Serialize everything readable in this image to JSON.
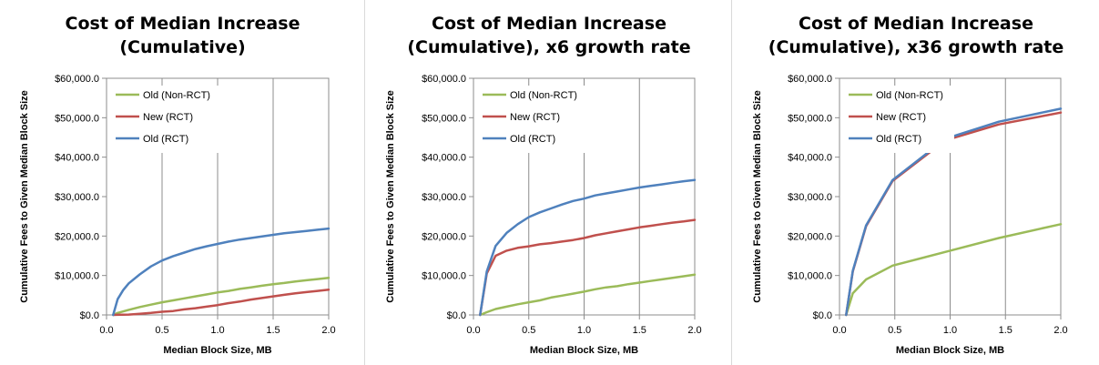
{
  "chart_data": [
    {
      "type": "line",
      "title_lines": [
        "Cost of Median Increase",
        "(Cumulative)"
      ],
      "xlabel": "Median Block Size, MB",
      "ylabel": "Cumulative Fees to Given Median Block Size",
      "xlim": [
        0,
        2
      ],
      "ylim": [
        0,
        60000
      ],
      "x_ticks": [
        0,
        0.5,
        1,
        1.5,
        2
      ],
      "x_tick_labels": [
        "0.0",
        "0.5",
        "1.0",
        "1.5",
        "2.0"
      ],
      "y_ticks": [
        0,
        10000,
        20000,
        30000,
        40000,
        50000,
        60000
      ],
      "y_tick_labels": [
        "$0.0",
        "$10,000.0",
        "$20,000.0",
        "$30,000.0",
        "$40,000.0",
        "$50,000.0",
        "$60,000.0"
      ],
      "grid": "vertical",
      "legend": "top-left",
      "series": [
        {
          "name": "Old (Non-RCT)",
          "color": "#9BBB59",
          "points": [
            [
              0.06,
              0
            ],
            [
              0.1,
              500
            ],
            [
              0.2,
              1300
            ],
            [
              0.3,
              2000
            ],
            [
              0.4,
              2600
            ],
            [
              0.5,
              3200
            ],
            [
              0.6,
              3700
            ],
            [
              0.7,
              4200
            ],
            [
              0.8,
              4700
            ],
            [
              0.9,
              5200
            ],
            [
              1.0,
              5700
            ],
            [
              1.1,
              6100
            ],
            [
              1.2,
              6600
            ],
            [
              1.3,
              7000
            ],
            [
              1.4,
              7400
            ],
            [
              1.5,
              7800
            ],
            [
              1.6,
              8100
            ],
            [
              1.7,
              8500
            ],
            [
              1.8,
              8800
            ],
            [
              1.9,
              9100
            ],
            [
              2.0,
              9400
            ]
          ]
        },
        {
          "name": "New (RCT)",
          "color": "#C0504D",
          "points": [
            [
              0.06,
              0
            ],
            [
              0.2,
              100
            ],
            [
              0.3,
              300
            ],
            [
              0.4,
              500
            ],
            [
              0.5,
              800
            ],
            [
              0.6,
              1000
            ],
            [
              0.7,
              1400
            ],
            [
              0.8,
              1700
            ],
            [
              0.9,
              2100
            ],
            [
              1.0,
              2500
            ],
            [
              1.1,
              3000
            ],
            [
              1.2,
              3400
            ],
            [
              1.3,
              3900
            ],
            [
              1.4,
              4300
            ],
            [
              1.5,
              4700
            ],
            [
              1.6,
              5100
            ],
            [
              1.7,
              5500
            ],
            [
              1.8,
              5800
            ],
            [
              1.9,
              6100
            ],
            [
              2.0,
              6400
            ]
          ]
        },
        {
          "name": "Old (RCT)",
          "color": "#4F81BD",
          "points": [
            [
              0.06,
              0
            ],
            [
              0.1,
              4000
            ],
            [
              0.15,
              6300
            ],
            [
              0.2,
              8000
            ],
            [
              0.3,
              10300
            ],
            [
              0.4,
              12300
            ],
            [
              0.5,
              13800
            ],
            [
              0.6,
              14900
            ],
            [
              0.7,
              15800
            ],
            [
              0.8,
              16700
            ],
            [
              0.9,
              17400
            ],
            [
              1.0,
              18000
            ],
            [
              1.1,
              18600
            ],
            [
              1.2,
              19100
            ],
            [
              1.3,
              19500
            ],
            [
              1.4,
              19900
            ],
            [
              1.5,
              20300
            ],
            [
              1.6,
              20700
            ],
            [
              1.7,
              21000
            ],
            [
              1.8,
              21300
            ],
            [
              1.9,
              21600
            ],
            [
              2.0,
              21900
            ]
          ]
        }
      ]
    },
    {
      "type": "line",
      "title_lines": [
        "Cost of Median Increase",
        "(Cumulative), x6 growth rate"
      ],
      "xlabel": "Median Block Size, MB",
      "ylabel": "Cumulative Fees to Given Median Block Size",
      "xlim": [
        0,
        2
      ],
      "ylim": [
        0,
        60000
      ],
      "x_ticks": [
        0,
        0.5,
        1,
        1.5,
        2
      ],
      "x_tick_labels": [
        "0.0",
        "0.5",
        "1.0",
        "1.5",
        "2.0"
      ],
      "y_ticks": [
        0,
        10000,
        20000,
        30000,
        40000,
        50000,
        60000
      ],
      "y_tick_labels": [
        "$0.0",
        "$10,000.0",
        "$20,000.0",
        "$30,000.0",
        "$40,000.0",
        "$50,000.0",
        "$60,000.0"
      ],
      "grid": "vertical",
      "legend": "top-left",
      "series": [
        {
          "name": "Old (Non-RCT)",
          "color": "#9BBB59",
          "points": [
            [
              0.06,
              0
            ],
            [
              0.12,
              700
            ],
            [
              0.2,
              1500
            ],
            [
              0.3,
              2100
            ],
            [
              0.4,
              2700
            ],
            [
              0.5,
              3200
            ],
            [
              0.6,
              3700
            ],
            [
              0.7,
              4400
            ],
            [
              0.8,
              4900
            ],
            [
              0.9,
              5400
            ],
            [
              1.0,
              5900
            ],
            [
              1.1,
              6500
            ],
            [
              1.2,
              7000
            ],
            [
              1.3,
              7300
            ],
            [
              1.4,
              7800
            ],
            [
              1.5,
              8200
            ],
            [
              1.6,
              8600
            ],
            [
              1.7,
              9000
            ],
            [
              1.8,
              9400
            ],
            [
              1.9,
              9800
            ],
            [
              2.0,
              10200
            ]
          ]
        },
        {
          "name": "New (RCT)",
          "color": "#C0504D",
          "points": [
            [
              0.06,
              0
            ],
            [
              0.12,
              10500
            ],
            [
              0.2,
              15000
            ],
            [
              0.3,
              16300
            ],
            [
              0.4,
              17000
            ],
            [
              0.5,
              17400
            ],
            [
              0.6,
              17900
            ],
            [
              0.7,
              18200
            ],
            [
              0.8,
              18600
            ],
            [
              0.9,
              19000
            ],
            [
              1.0,
              19500
            ],
            [
              1.1,
              20200
            ],
            [
              1.2,
              20700
            ],
            [
              1.3,
              21200
            ],
            [
              1.4,
              21700
            ],
            [
              1.5,
              22200
            ],
            [
              1.6,
              22600
            ],
            [
              1.7,
              23000
            ],
            [
              1.8,
              23400
            ],
            [
              1.9,
              23700
            ],
            [
              2.0,
              24100
            ]
          ]
        },
        {
          "name": "Old (RCT)",
          "color": "#4F81BD",
          "points": [
            [
              0.06,
              0
            ],
            [
              0.12,
              11000
            ],
            [
              0.2,
              17500
            ],
            [
              0.3,
              20800
            ],
            [
              0.4,
              23000
            ],
            [
              0.5,
              24800
            ],
            [
              0.6,
              26000
            ],
            [
              0.7,
              27000
            ],
            [
              0.8,
              28000
            ],
            [
              0.9,
              28900
            ],
            [
              1.0,
              29500
            ],
            [
              1.1,
              30300
            ],
            [
              1.2,
              30800
            ],
            [
              1.3,
              31300
            ],
            [
              1.4,
              31800
            ],
            [
              1.5,
              32300
            ],
            [
              1.6,
              32700
            ],
            [
              1.7,
              33100
            ],
            [
              1.8,
              33500
            ],
            [
              1.9,
              33900
            ],
            [
              2.0,
              34200
            ]
          ]
        }
      ]
    },
    {
      "type": "line",
      "title_lines": [
        "Cost of Median Increase",
        "(Cumulative), x36 growth rate"
      ],
      "xlabel": "Median Block Size, MB",
      "ylabel": "Cumulative Fees to Given Median Block Size",
      "xlim": [
        0,
        2
      ],
      "ylim": [
        0,
        60000
      ],
      "x_ticks": [
        0,
        0.5,
        1,
        1.5,
        2
      ],
      "x_tick_labels": [
        "0.0",
        "0.5",
        "1.0",
        "1.5",
        "2.0"
      ],
      "y_ticks": [
        0,
        10000,
        20000,
        30000,
        40000,
        50000,
        60000
      ],
      "y_tick_labels": [
        "$0.0",
        "$10,000.0",
        "$20,000.0",
        "$30,000.0",
        "$40,000.0",
        "$50,000.0",
        "$60,000.0"
      ],
      "grid": "vertical",
      "legend": "top-left",
      "series": [
        {
          "name": "Old (Non-RCT)",
          "color": "#9BBB59",
          "points": [
            [
              0.06,
              0
            ],
            [
              0.12,
              5500
            ],
            [
              0.24,
              9000
            ],
            [
              0.48,
              12500
            ],
            [
              0.96,
              16000
            ],
            [
              1.44,
              19500
            ],
            [
              2.0,
              23000
            ]
          ]
        },
        {
          "name": "New (RCT)",
          "color": "#C0504D",
          "points": [
            [
              0.06,
              0
            ],
            [
              0.12,
              11000
            ],
            [
              0.24,
              22500
            ],
            [
              0.48,
              34000
            ],
            [
              0.96,
              44300
            ],
            [
              1.44,
              48300
            ],
            [
              2.0,
              51300
            ]
          ]
        },
        {
          "name": "Old (RCT)",
          "color": "#4F81BD",
          "points": [
            [
              0.06,
              0
            ],
            [
              0.12,
              11200
            ],
            [
              0.24,
              22700
            ],
            [
              0.48,
              34200
            ],
            [
              0.96,
              44700
            ],
            [
              1.44,
              49000
            ],
            [
              2.0,
              52300
            ]
          ]
        }
      ]
    }
  ]
}
